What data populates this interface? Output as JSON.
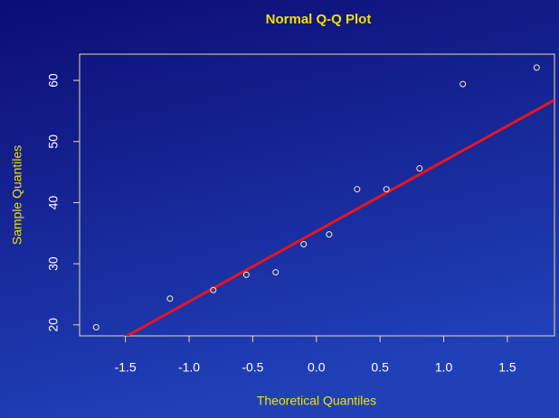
{
  "chart_data": {
    "type": "qq",
    "title": "Normal Q-Q Plot",
    "x_label": "Theoretical Quantiles",
    "y_label": "Sample Quantiles",
    "x": [
      -1.73,
      -1.15,
      -0.81,
      -0.55,
      -0.32,
      -0.1,
      0.1,
      0.32,
      0.55,
      0.81,
      1.15,
      1.73
    ],
    "values": [
      19.6,
      24.3,
      25.7,
      28.2,
      28.6,
      33.2,
      34.8,
      42.2,
      42.2,
      45.6,
      59.4,
      62.1
    ],
    "color": "#f4f0c0",
    "reference_line": {
      "slope": 11.5,
      "intercept": 35.3,
      "color": "#e8141e"
    },
    "xlim": [
      -1.86,
      1.87
    ],
    "xticks": [
      {
        "value": -1.5,
        "label": "-1.5"
      },
      {
        "value": -1.0,
        "label": "-1.0"
      },
      {
        "value": -0.5,
        "label": "-0.5"
      },
      {
        "value": 0.0,
        "label": "0.0"
      },
      {
        "value": 0.5,
        "label": "0.5"
      },
      {
        "value": 1.0,
        "label": "1.0"
      },
      {
        "value": 1.5,
        "label": "1.5"
      }
    ],
    "ylim": [
      18.2,
      64.3
    ],
    "yticks": [
      20,
      30,
      40,
      50,
      60
    ]
  }
}
